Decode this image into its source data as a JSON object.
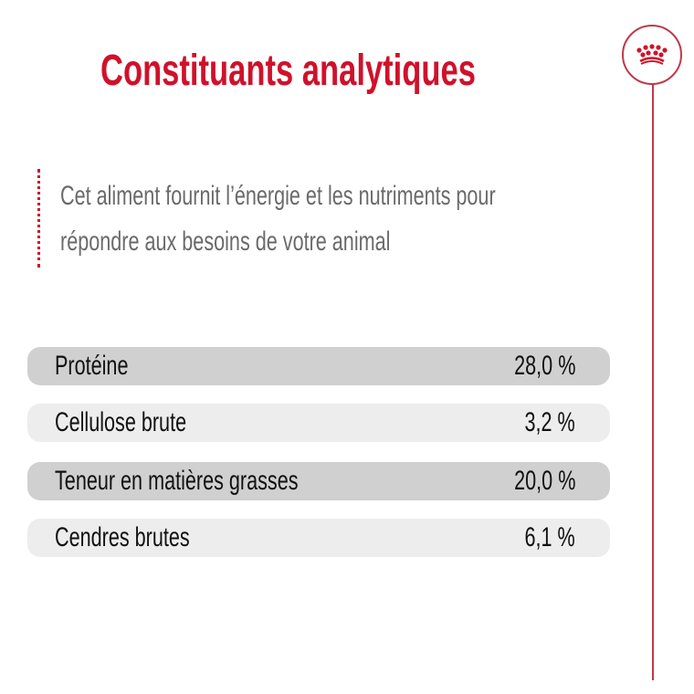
{
  "title": "Constituants analytiques",
  "subtitle": [
    "Cet aliment fournit l’énergie et les nutriments pour",
    "répondre aux besoins de votre animal"
  ],
  "rows": [
    {
      "label": "Protéine",
      "value": "28,0 %"
    },
    {
      "label": "Cellulose brute",
      "value": "3,2 %"
    },
    {
      "label": "Teneur en matières grasses",
      "value": "20,0 %"
    },
    {
      "label": "Cendres brutes",
      "value": "6,1 %"
    }
  ],
  "logo": {
    "icon": "crown-icon",
    "color": "#d0112b"
  },
  "colors": {
    "accent": "#d0112b",
    "row_dark": "#d0d0d0",
    "row_light": "#ededed"
  }
}
